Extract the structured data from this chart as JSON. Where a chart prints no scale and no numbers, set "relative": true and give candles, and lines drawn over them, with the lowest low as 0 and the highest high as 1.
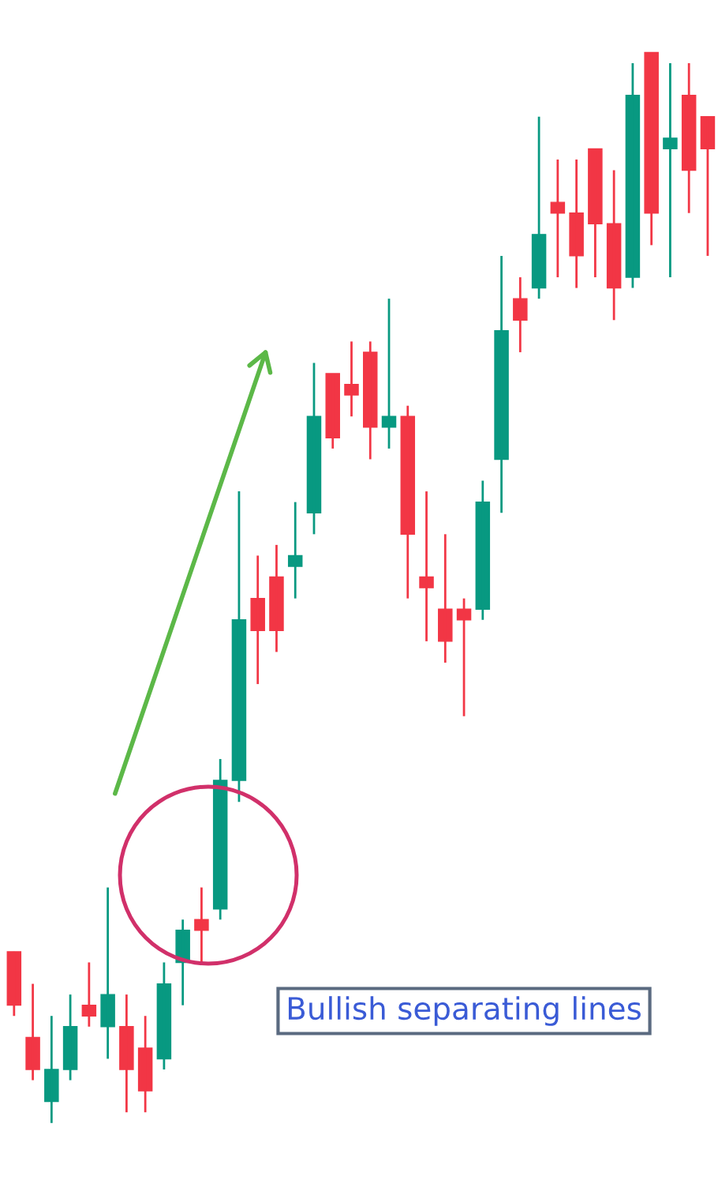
{
  "chart_data": {
    "type": "candlestick",
    "relative": true,
    "categories": [
      null,
      null,
      null,
      null,
      null,
      null,
      null,
      null,
      null,
      null,
      null,
      null,
      null,
      null,
      null,
      null,
      null,
      null,
      null,
      null,
      null,
      null,
      null,
      null,
      null,
      null,
      null,
      null,
      null,
      null,
      null,
      null,
      null,
      null,
      null,
      null,
      null,
      null
    ],
    "ohlc": [
      [
        0.16,
        0.16,
        0.1,
        0.11
      ],
      [
        0.08,
        0.13,
        0.04,
        0.05
      ],
      [
        0.02,
        0.1,
        0,
        0.05
      ],
      [
        0.05,
        0.12,
        0.04,
        0.09
      ],
      [
        0.11,
        0.15,
        0.09,
        0.1
      ],
      [
        0.09,
        0.22,
        0.06,
        0.12
      ],
      [
        0.09,
        0.12,
        0.01,
        0.05
      ],
      [
        0.07,
        0.1,
        0.01,
        0.03
      ],
      [
        0.06,
        0.15,
        0.05,
        0.13
      ],
      [
        0.15,
        0.19,
        0.11,
        0.18
      ],
      [
        0.19,
        0.22,
        0.15,
        0.18
      ],
      [
        0.2,
        0.34,
        0.19,
        0.32
      ],
      [
        0.32,
        0.59,
        0.3,
        0.47
      ],
      [
        0.49,
        0.53,
        0.41,
        0.46
      ],
      [
        0.51,
        0.54,
        0.44,
        0.46
      ],
      [
        0.52,
        0.58,
        0.49,
        0.53
      ],
      [
        0.57,
        0.71,
        0.55,
        0.66
      ],
      [
        0.7,
        0.7,
        0.63,
        0.64
      ],
      [
        0.69,
        0.73,
        0.66,
        0.68
      ],
      [
        0.72,
        0.73,
        0.62,
        0.65
      ],
      [
        0.65,
        0.77,
        0.63,
        0.66
      ],
      [
        0.66,
        0.67,
        0.49,
        0.55
      ],
      [
        0.51,
        0.59,
        0.45,
        0.5
      ],
      [
        0.48,
        0.55,
        0.43,
        0.45
      ],
      [
        0.48,
        0.49,
        0.38,
        0.47
      ],
      [
        0.48,
        0.6,
        0.47,
        0.58
      ],
      [
        0.62,
        0.81,
        0.57,
        0.74
      ],
      [
        0.77,
        0.79,
        0.72,
        0.75
      ],
      [
        0.78,
        0.94,
        0.77,
        0.83
      ],
      [
        0.86,
        0.9,
        0.79,
        0.85
      ],
      [
        0.85,
        0.9,
        0.78,
        0.81
      ],
      [
        0.91,
        0.91,
        0.79,
        0.84
      ],
      [
        0.84,
        0.89,
        0.75,
        0.78
      ],
      [
        0.79,
        0.99,
        0.78,
        0.96
      ],
      [
        1,
        1,
        0.82,
        0.85
      ],
      [
        0.91,
        0.99,
        0.79,
        0.92
      ],
      [
        0.96,
        0.99,
        0.85,
        0.89
      ],
      [
        0.94,
        0.94,
        0.81,
        0.91
      ]
    ],
    "colors": [
      "#f23645",
      "#f23645",
      "#089981",
      "#089981",
      "#f23645",
      "#089981",
      "#f23645",
      "#f23645",
      "#089981",
      "#089981",
      "#f23645",
      "#089981",
      "#089981",
      "#f23645",
      "#f23645",
      "#089981",
      "#089981",
      "#f23645",
      "#f23645",
      "#f23645",
      "#089981",
      "#f23645",
      "#f23645",
      "#f23645",
      "#f23645",
      "#089981",
      "#089981",
      "#f23645",
      "#089981",
      "#f23645",
      "#f23645",
      "#f23645",
      "#f23645",
      "#089981",
      "#f23645",
      "#089981",
      "#f23645",
      "#f23645"
    ],
    "annotations": [
      "Bullish separating lines"
    ]
  }
}
